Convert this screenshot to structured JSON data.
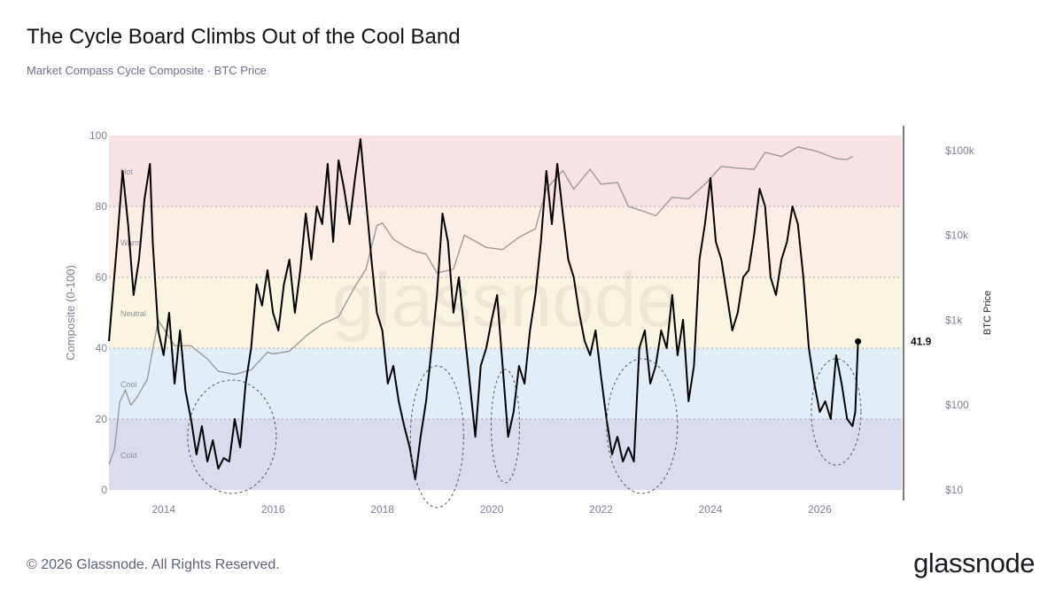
{
  "header": {
    "title": "The Cycle Board Climbs Out of the Cool Band",
    "subtitle": "Market Compass Cycle Composite · BTC Price"
  },
  "footer": {
    "copyright": "© 2026 Glassnode. All Rights Reserved.",
    "brand": "glassnode"
  },
  "watermark": "glassnode",
  "chart_data": {
    "type": "line",
    "ylabel": "Composite (0-100)",
    "y2label": "BTC Price",
    "ylim": [
      0,
      100
    ],
    "xlim": [
      2013.0,
      2027.5
    ],
    "y2_scale": "log",
    "y2lim": [
      10,
      150000
    ],
    "x_ticks": [
      "2014",
      "2016",
      "2018",
      "2020",
      "2022",
      "2024",
      "2026"
    ],
    "y_ticks": [
      "0",
      "20",
      "40",
      "60",
      "80",
      "100"
    ],
    "y2_ticks": [
      "$10",
      "$100",
      "$1k",
      "$10k",
      "$100k"
    ],
    "grid": false,
    "bands": [
      {
        "label": "Cold",
        "from": 0,
        "to": 20,
        "color": "#d8dcec"
      },
      {
        "label": "Cool",
        "from": 20,
        "to": 40,
        "color": "#e2eef7"
      },
      {
        "label": "Neutral",
        "from": 40,
        "to": 60,
        "color": "#faf5e1"
      },
      {
        "label": "Warm",
        "from": 60,
        "to": 80,
        "color": "#fbeee4"
      },
      {
        "label": "Hot",
        "from": 80,
        "to": 100,
        "color": "#f7e2e4"
      }
    ],
    "last_value_label": "41.9",
    "series": [
      {
        "color": "#000000",
        "x": [
          2013.0,
          2013.15,
          2013.25,
          2013.35,
          2013.45,
          2013.55,
          2013.65,
          2013.75,
          2013.8,
          2013.9,
          2014.0,
          2014.1,
          2014.2,
          2014.3,
          2014.4,
          2014.5,
          2014.6,
          2014.7,
          2014.8,
          2014.9,
          2015.0,
          2015.1,
          2015.2,
          2015.3,
          2015.4,
          2015.5,
          2015.6,
          2015.7,
          2015.8,
          2015.9,
          2016.0,
          2016.1,
          2016.2,
          2016.3,
          2016.4,
          2016.5,
          2016.6,
          2016.7,
          2016.8,
          2016.9,
          2017.0,
          2017.1,
          2017.2,
          2017.3,
          2017.4,
          2017.5,
          2017.6,
          2017.7,
          2017.8,
          2017.9,
          2018.0,
          2018.1,
          2018.2,
          2018.3,
          2018.4,
          2018.5,
          2018.6,
          2018.7,
          2018.8,
          2018.9,
          2019.0,
          2019.1,
          2019.2,
          2019.3,
          2019.4,
          2019.5,
          2019.6,
          2019.7,
          2019.8,
          2019.9,
          2020.0,
          2020.1,
          2020.2,
          2020.3,
          2020.4,
          2020.5,
          2020.6,
          2020.7,
          2020.8,
          2020.9,
          2021.0,
          2021.1,
          2021.2,
          2021.3,
          2021.4,
          2021.5,
          2021.6,
          2021.7,
          2021.8,
          2021.9,
          2022.0,
          2022.1,
          2022.2,
          2022.3,
          2022.4,
          2022.5,
          2022.6,
          2022.7,
          2022.8,
          2022.9,
          2023.0,
          2023.1,
          2023.2,
          2023.3,
          2023.4,
          2023.5,
          2023.6,
          2023.7,
          2023.8,
          2023.9,
          2024.0,
          2024.1,
          2024.2,
          2024.3,
          2024.4,
          2024.5,
          2024.6,
          2024.7,
          2024.8,
          2024.9,
          2025.0,
          2025.1,
          2025.2,
          2025.3,
          2025.4,
          2025.5,
          2025.6,
          2025.7,
          2025.8,
          2025.9,
          2026.0,
          2026.1,
          2026.2,
          2026.3,
          2026.4,
          2026.5,
          2026.6,
          2026.65,
          2026.7
        ],
        "values": [
          42,
          70,
          90,
          75,
          55,
          65,
          82,
          92,
          70,
          45,
          38,
          50,
          30,
          45,
          28,
          20,
          10,
          18,
          8,
          14,
          6,
          9,
          8,
          20,
          12,
          30,
          40,
          58,
          52,
          62,
          50,
          45,
          58,
          65,
          50,
          62,
          78,
          65,
          80,
          75,
          92,
          70,
          93,
          85,
          75,
          88,
          99,
          82,
          65,
          50,
          45,
          30,
          35,
          25,
          18,
          12,
          3,
          15,
          25,
          40,
          55,
          78,
          70,
          50,
          60,
          45,
          30,
          15,
          35,
          40,
          48,
          55,
          35,
          15,
          22,
          35,
          30,
          45,
          55,
          70,
          90,
          75,
          92,
          78,
          65,
          60,
          50,
          42,
          38,
          45,
          32,
          20,
          10,
          15,
          8,
          12,
          8,
          40,
          45,
          30,
          35,
          45,
          40,
          55,
          38,
          48,
          25,
          35,
          65,
          75,
          88,
          70,
          65,
          55,
          45,
          50,
          60,
          62,
          72,
          85,
          80,
          60,
          55,
          65,
          70,
          80,
          75,
          60,
          40,
          30,
          22,
          25,
          20,
          38,
          30,
          20,
          18,
          22,
          41.9
        ]
      },
      {
        "name": "BTC Price",
        "color": "#9a9a9a",
        "x": [
          2013.0,
          2013.1,
          2013.2,
          2013.3,
          2013.4,
          2013.5,
          2013.7,
          2013.9,
          2014.0,
          2014.2,
          2014.5,
          2014.8,
          2015.0,
          2015.3,
          2015.6,
          2015.9,
          2016.0,
          2016.3,
          2016.6,
          2016.9,
          2017.2,
          2017.5,
          2017.7,
          2017.9,
          2018.0,
          2018.2,
          2018.4,
          2018.6,
          2018.8,
          2019.0,
          2019.3,
          2019.5,
          2019.7,
          2019.9,
          2020.2,
          2020.5,
          2020.8,
          2021.0,
          2021.3,
          2021.5,
          2021.8,
          2022.0,
          2022.3,
          2022.5,
          2022.8,
          2023.0,
          2023.3,
          2023.6,
          2023.9,
          2024.2,
          2024.5,
          2024.8,
          2025.0,
          2025.3,
          2025.6,
          2025.9,
          2026.0,
          2026.3,
          2026.5,
          2026.6
        ],
        "values": [
          20,
          30,
          110,
          150,
          100,
          120,
          200,
          1000,
          800,
          500,
          500,
          350,
          250,
          230,
          260,
          420,
          400,
          430,
          650,
          900,
          1100,
          2500,
          4000,
          13000,
          14000,
          9000,
          7500,
          6500,
          6000,
          3600,
          4000,
          10000,
          8500,
          7200,
          6800,
          9500,
          12000,
          35000,
          58000,
          35000,
          60000,
          40000,
          42000,
          22000,
          19000,
          17000,
          28000,
          27000,
          40000,
          65000,
          62000,
          60000,
          95000,
          85000,
          110000,
          100000,
          95000,
          80000,
          78000,
          85000
        ]
      }
    ]
  }
}
